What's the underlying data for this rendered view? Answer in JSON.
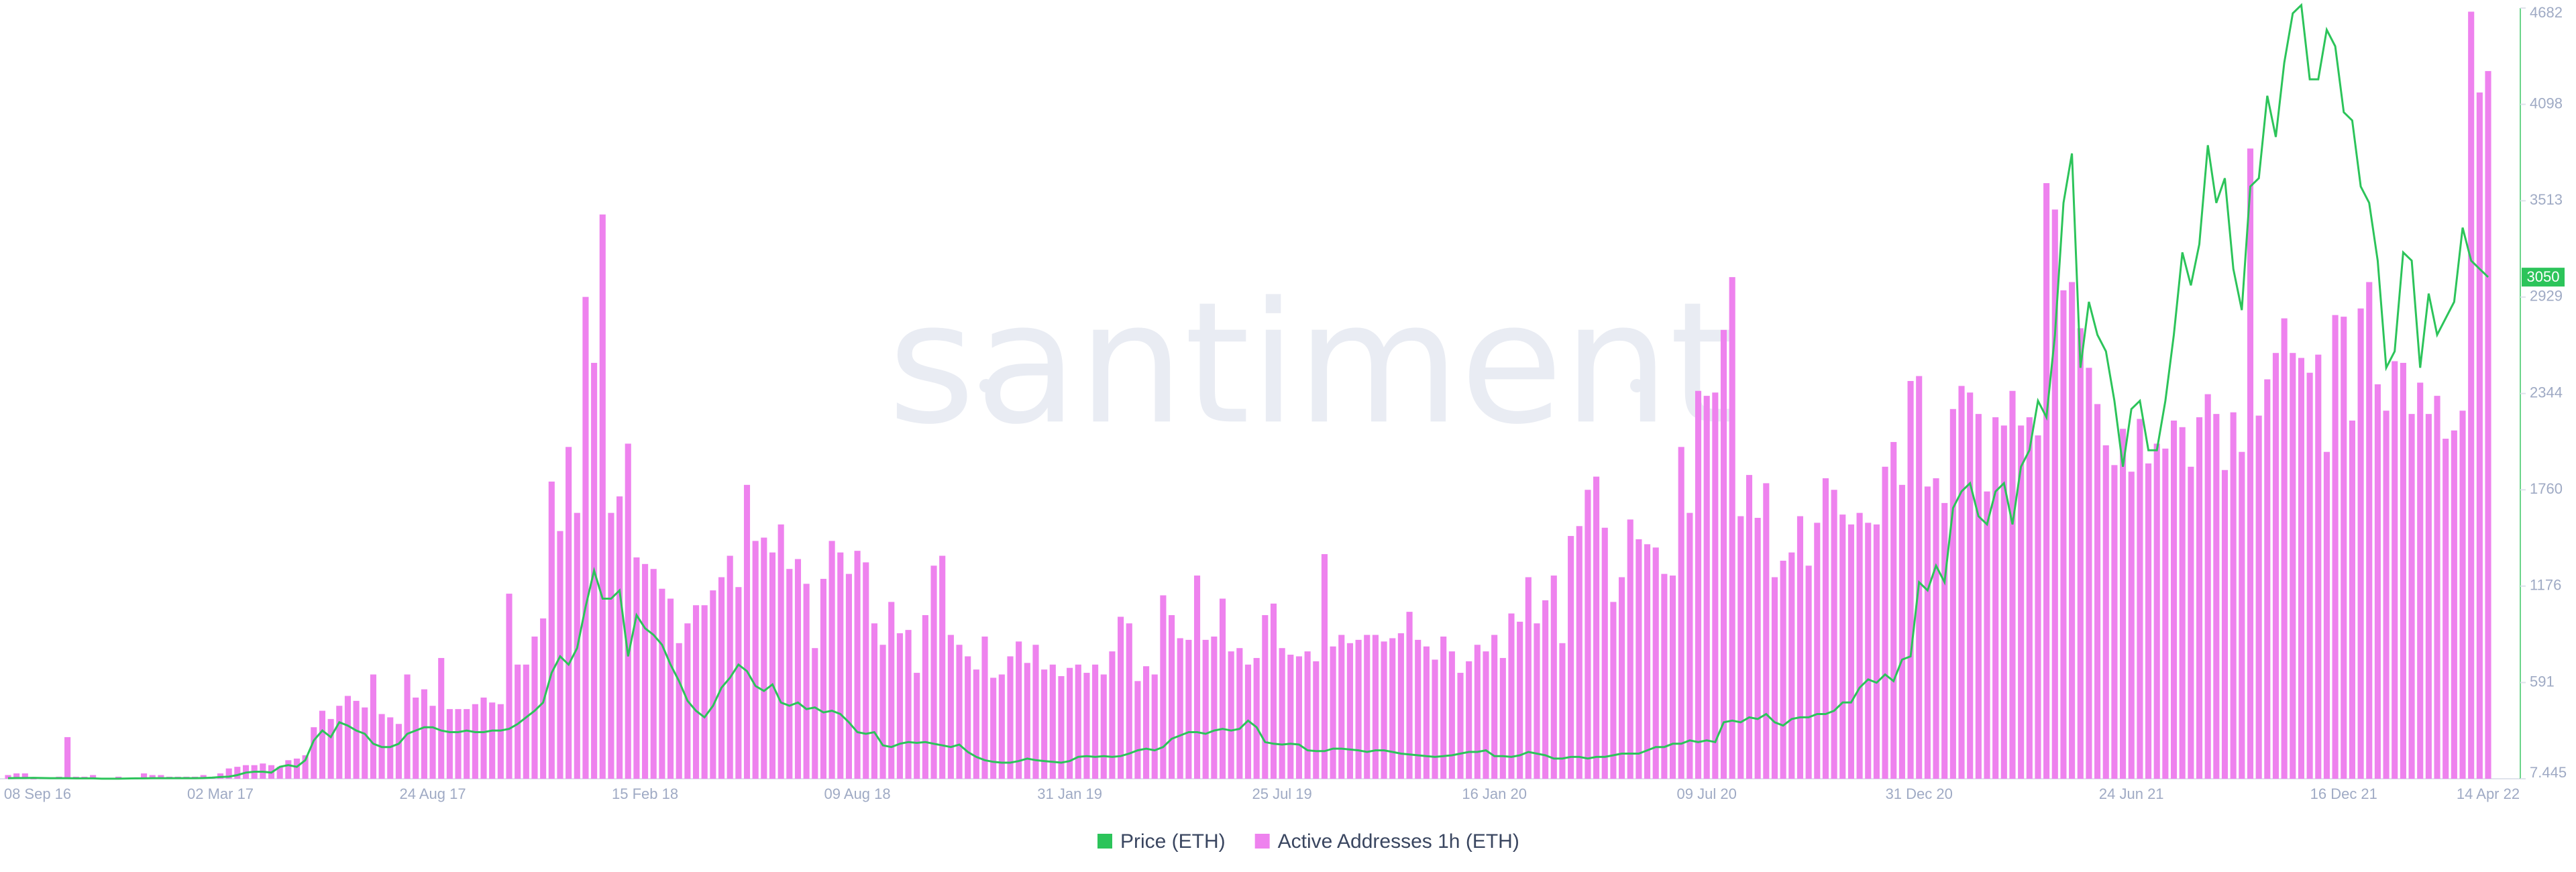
{
  "chart_data": {
    "type": "combo",
    "watermark": "santiment",
    "categories": [
      "08 Sep 16",
      null,
      null,
      null,
      null,
      null,
      null,
      null,
      null,
      null,
      null,
      null,
      null,
      null,
      null,
      null,
      null,
      null,
      null,
      null,
      null,
      null,
      null,
      null,
      null,
      "02 Mar 17",
      null,
      null,
      null,
      null,
      null,
      null,
      null,
      null,
      null,
      null,
      null,
      null,
      null,
      null,
      null,
      null,
      null,
      null,
      null,
      null,
      null,
      null,
      null,
      null,
      "24 Aug 17",
      null,
      null,
      null,
      null,
      null,
      null,
      null,
      null,
      null,
      null,
      null,
      null,
      null,
      null,
      null,
      null,
      null,
      null,
      null,
      null,
      null,
      null,
      null,
      null,
      "15 Feb 18",
      null,
      null,
      null,
      null,
      null,
      null,
      null,
      null,
      null,
      null,
      null,
      null,
      null,
      null,
      null,
      null,
      null,
      null,
      null,
      null,
      null,
      null,
      null,
      null,
      "09 Aug 18",
      null,
      null,
      null,
      null,
      null,
      null,
      null,
      null,
      null,
      null,
      null,
      null,
      null,
      null,
      null,
      null,
      null,
      null,
      null,
      null,
      null,
      null,
      null,
      null,
      "31 Jan 19",
      null,
      null,
      null,
      null,
      null,
      null,
      null,
      null,
      null,
      null,
      null,
      null,
      null,
      null,
      null,
      null,
      null,
      null,
      null,
      null,
      null,
      null,
      null,
      null,
      "25 Jul 19",
      null,
      null,
      null,
      null,
      null,
      null,
      null,
      null,
      null,
      null,
      null,
      null,
      null,
      null,
      null,
      null,
      null,
      null,
      null,
      null,
      null,
      null,
      null,
      null,
      "16 Jan 20",
      null,
      null,
      null,
      null,
      null,
      null,
      null,
      null,
      null,
      null,
      null,
      null,
      null,
      null,
      null,
      null,
      null,
      null,
      null,
      null,
      null,
      null,
      null,
      null,
      "09 Jul 20",
      null,
      null,
      null,
      null,
      null,
      null,
      null,
      null,
      null,
      null,
      null,
      null,
      null,
      null,
      null,
      null,
      null,
      null,
      null,
      null,
      null,
      null,
      null,
      null,
      "31 Dec 20",
      null,
      null,
      null,
      null,
      null,
      null,
      null,
      null,
      null,
      null,
      null,
      null,
      null,
      null,
      null,
      null,
      null,
      null,
      null,
      null,
      null,
      null,
      null,
      null,
      "24 Jun 21",
      null,
      null,
      null,
      null,
      null,
      null,
      null,
      null,
      null,
      null,
      null,
      null,
      null,
      null,
      null,
      null,
      null,
      null,
      null,
      null,
      null,
      null,
      null,
      null,
      "16 Dec 21",
      null,
      null,
      null,
      null,
      null,
      null,
      null,
      null,
      null,
      null,
      null,
      null,
      null,
      null,
      null,
      null,
      "14 Apr 22"
    ],
    "series": [
      {
        "name": "Price (ETH)",
        "type": "line",
        "color": "#2cc45a",
        "values": [
          11,
          12,
          12,
          13,
          12,
          11,
          11,
          11,
          10,
          10,
          10,
          8,
          8,
          8,
          9,
          10,
          10,
          11,
          11,
          11,
          11,
          11,
          11,
          12,
          14,
          18,
          20,
          30,
          45,
          50,
          50,
          45,
          80,
          90,
          80,
          120,
          240,
          300,
          260,
          350,
          330,
          300,
          280,
          220,
          200,
          200,
          220,
          280,
          300,
          320,
          320,
          300,
          290,
          290,
          300,
          290,
          290,
          300,
          300,
          310,
          340,
          380,
          420,
          470,
          650,
          750,
          700,
          800,
          1050,
          1270,
          1100,
          1100,
          1150,
          750,
          1000,
          920,
          880,
          820,
          700,
          600,
          480,
          420,
          380,
          450,
          560,
          620,
          700,
          660,
          570,
          540,
          580,
          470,
          450,
          470,
          430,
          440,
          410,
          420,
          400,
          350,
          290,
          280,
          290,
          210,
          200,
          220,
          230,
          225,
          230,
          220,
          210,
          200,
          215,
          170,
          140,
          120,
          110,
          105,
          105,
          115,
          130,
          120,
          115,
          110,
          105,
          115,
          140,
          145,
          140,
          145,
          140,
          145,
          160,
          180,
          190,
          180,
          200,
          250,
          270,
          290,
          290,
          280,
          300,
          310,
          300,
          310,
          360,
          320,
          230,
          220,
          215,
          220,
          215,
          180,
          175,
          175,
          190,
          190,
          185,
          180,
          170,
          180,
          180,
          170,
          160,
          155,
          150,
          145,
          140,
          145,
          150,
          160,
          170,
          170,
          180,
          145,
          145,
          140,
          150,
          170,
          160,
          150,
          130,
          130,
          140,
          140,
          130,
          140,
          140,
          150,
          160,
          160,
          160,
          180,
          200,
          200,
          220,
          220,
          240,
          230,
          240,
          230,
          350,
          360,
          350,
          380,
          370,
          400,
          350,
          330,
          370,
          380,
          380,
          400,
          400,
          420,
          470,
          470,
          560,
          610,
          590,
          640,
          600,
          730,
          750,
          1200,
          1150,
          1300,
          1200,
          1650,
          1750,
          1800,
          1600,
          1550,
          1750,
          1800,
          1550,
          1900,
          2000,
          2300,
          2200,
          2700,
          3500,
          3800,
          2500,
          2900,
          2700,
          2600,
          2300,
          1900,
          2250,
          2300,
          2000,
          2000,
          2300,
          2700,
          3200,
          3000,
          3250,
          3850,
          3500,
          3650,
          3100,
          2850,
          3600,
          3650,
          4150,
          3900,
          4350,
          4650,
          4700,
          4250,
          4250,
          4550,
          4450,
          4050,
          4000,
          3600,
          3500,
          3150,
          2500,
          2600,
          3200,
          3150,
          2500,
          2950,
          2700,
          2800,
          2900,
          3350,
          3150,
          3100,
          3050
        ]
      },
      {
        "name": "Active Addresses 1h (ETH)",
        "type": "bar",
        "color": "#ee82ee",
        "values": [
          30,
          40,
          40,
          5,
          10,
          10,
          20,
          260,
          20,
          20,
          30,
          5,
          10,
          20,
          10,
          5,
          40,
          30,
          30,
          20,
          20,
          20,
          20,
          30,
          20,
          40,
          70,
          80,
          90,
          90,
          100,
          90,
          80,
          120,
          130,
          150,
          320,
          420,
          370,
          450,
          510,
          480,
          440,
          640,
          400,
          380,
          340,
          640,
          500,
          550,
          450,
          740,
          430,
          430,
          430,
          460,
          500,
          470,
          460,
          1130,
          700,
          700,
          870,
          980,
          1810,
          1510,
          2020,
          1620,
          2930,
          2530,
          3430,
          1620,
          1720,
          2040,
          1350,
          1310,
          1280,
          1160,
          1100,
          830,
          950,
          1060,
          1060,
          1150,
          1230,
          1360,
          1170,
          1790,
          1450,
          1470,
          1380,
          1550,
          1280,
          1340,
          1190,
          800,
          1220,
          1450,
          1380,
          1250,
          1390,
          1320,
          950,
          820,
          1080,
          890,
          910,
          650,
          1000,
          1300,
          1360,
          880,
          820,
          750,
          670,
          870,
          620,
          640,
          750,
          840,
          710,
          820,
          670,
          700,
          630,
          680,
          700,
          650,
          700,
          640,
          780,
          990,
          950,
          600,
          690,
          640,
          1120,
          1000,
          860,
          850,
          1240,
          850,
          870,
          1100,
          780,
          800,
          700,
          740,
          1000,
          1070,
          800,
          760,
          750,
          780,
          720,
          1370,
          810,
          880,
          830,
          850,
          880,
          880,
          840,
          860,
          890,
          1020,
          850,
          810,
          730,
          870,
          780,
          650,
          720,
          820,
          780,
          880,
          740,
          1010,
          960,
          1230,
          950,
          1090,
          1240,
          830,
          1480,
          1540,
          1760,
          1840,
          1530,
          1080,
          1230,
          1580,
          1460,
          1430,
          1410,
          1250,
          1240,
          2020,
          1620,
          2360,
          2330,
          2350,
          2730,
          3050,
          1600,
          1850,
          1590,
          1800,
          1230,
          1330,
          1380,
          1600,
          1300,
          1560,
          1830,
          1760,
          1610,
          1550,
          1620,
          1560,
          1550,
          1900,
          2050,
          1790,
          2420,
          2450,
          1780,
          1830,
          1680,
          2250,
          2390,
          2350,
          2220,
          1750,
          2200,
          2150,
          2360,
          2150,
          2200,
          2090,
          3620,
          3460,
          2970,
          3020,
          2740,
          2500,
          2280,
          2030,
          1910,
          2130,
          1870,
          2190,
          1920,
          2040,
          2010,
          2180,
          2140,
          1900,
          2200,
          2340,
          2220,
          1880,
          2230,
          1990,
          3830,
          2210,
          2430,
          2590,
          2800,
          2590,
          2560,
          2470,
          2580,
          1990,
          2820,
          2810,
          2180,
          2860,
          3020,
          2400,
          2240,
          2540,
          2530,
          2220,
          2410,
          2220,
          2330,
          2070,
          2120,
          2240,
          4660,
          4170,
          4300
        ]
      }
    ],
    "ylim": [
      7.445,
      4682
    ],
    "yticks": [
      7.445,
      591,
      1176,
      1760,
      2344,
      2929,
      3513,
      4098,
      4682
    ],
    "y_axis_side": "right",
    "grid": false
  }
}
